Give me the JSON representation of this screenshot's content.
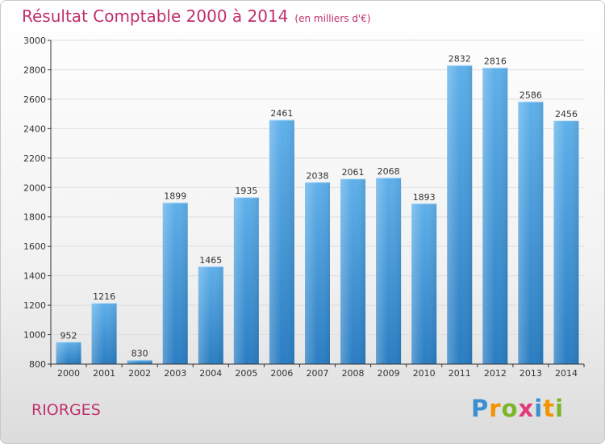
{
  "title": "Résultat Comptable 2000 à 2014",
  "unit": "(en milliers d'€)",
  "commune": "RIORGES",
  "logo": {
    "text": "Proxiti",
    "letters": [
      "P",
      "r",
      "o",
      "x",
      "i",
      "t",
      "i"
    ],
    "colors": [
      "#3a8fd0",
      "#f29400",
      "#7cb527",
      "#e23a7a",
      "#3a8fd0",
      "#f29400",
      "#7cb527"
    ]
  },
  "colors": {
    "title": "#c0306a",
    "bar_light": "#5fb0ea",
    "bar_dark": "#2a7dc2",
    "grid": "#dddddd",
    "axis": "#333333"
  },
  "chart_data": {
    "type": "bar",
    "categories": [
      "2000",
      "2001",
      "2002",
      "2003",
      "2004",
      "2005",
      "2006",
      "2007",
      "2008",
      "2009",
      "2010",
      "2011",
      "2012",
      "2013",
      "2014"
    ],
    "values": [
      952,
      1216,
      830,
      1899,
      1465,
      1935,
      2461,
      2038,
      2061,
      2068,
      1893,
      2832,
      2816,
      2586,
      2456
    ],
    "title": "Résultat Comptable 2000 à 2014",
    "xlabel": "",
    "ylabel": "",
    "ylim": [
      800,
      3000
    ],
    "yticks": [
      800,
      1000,
      1200,
      1400,
      1600,
      1800,
      2000,
      2200,
      2400,
      2600,
      2800,
      3000
    ],
    "grid": true,
    "data_labels": true
  }
}
